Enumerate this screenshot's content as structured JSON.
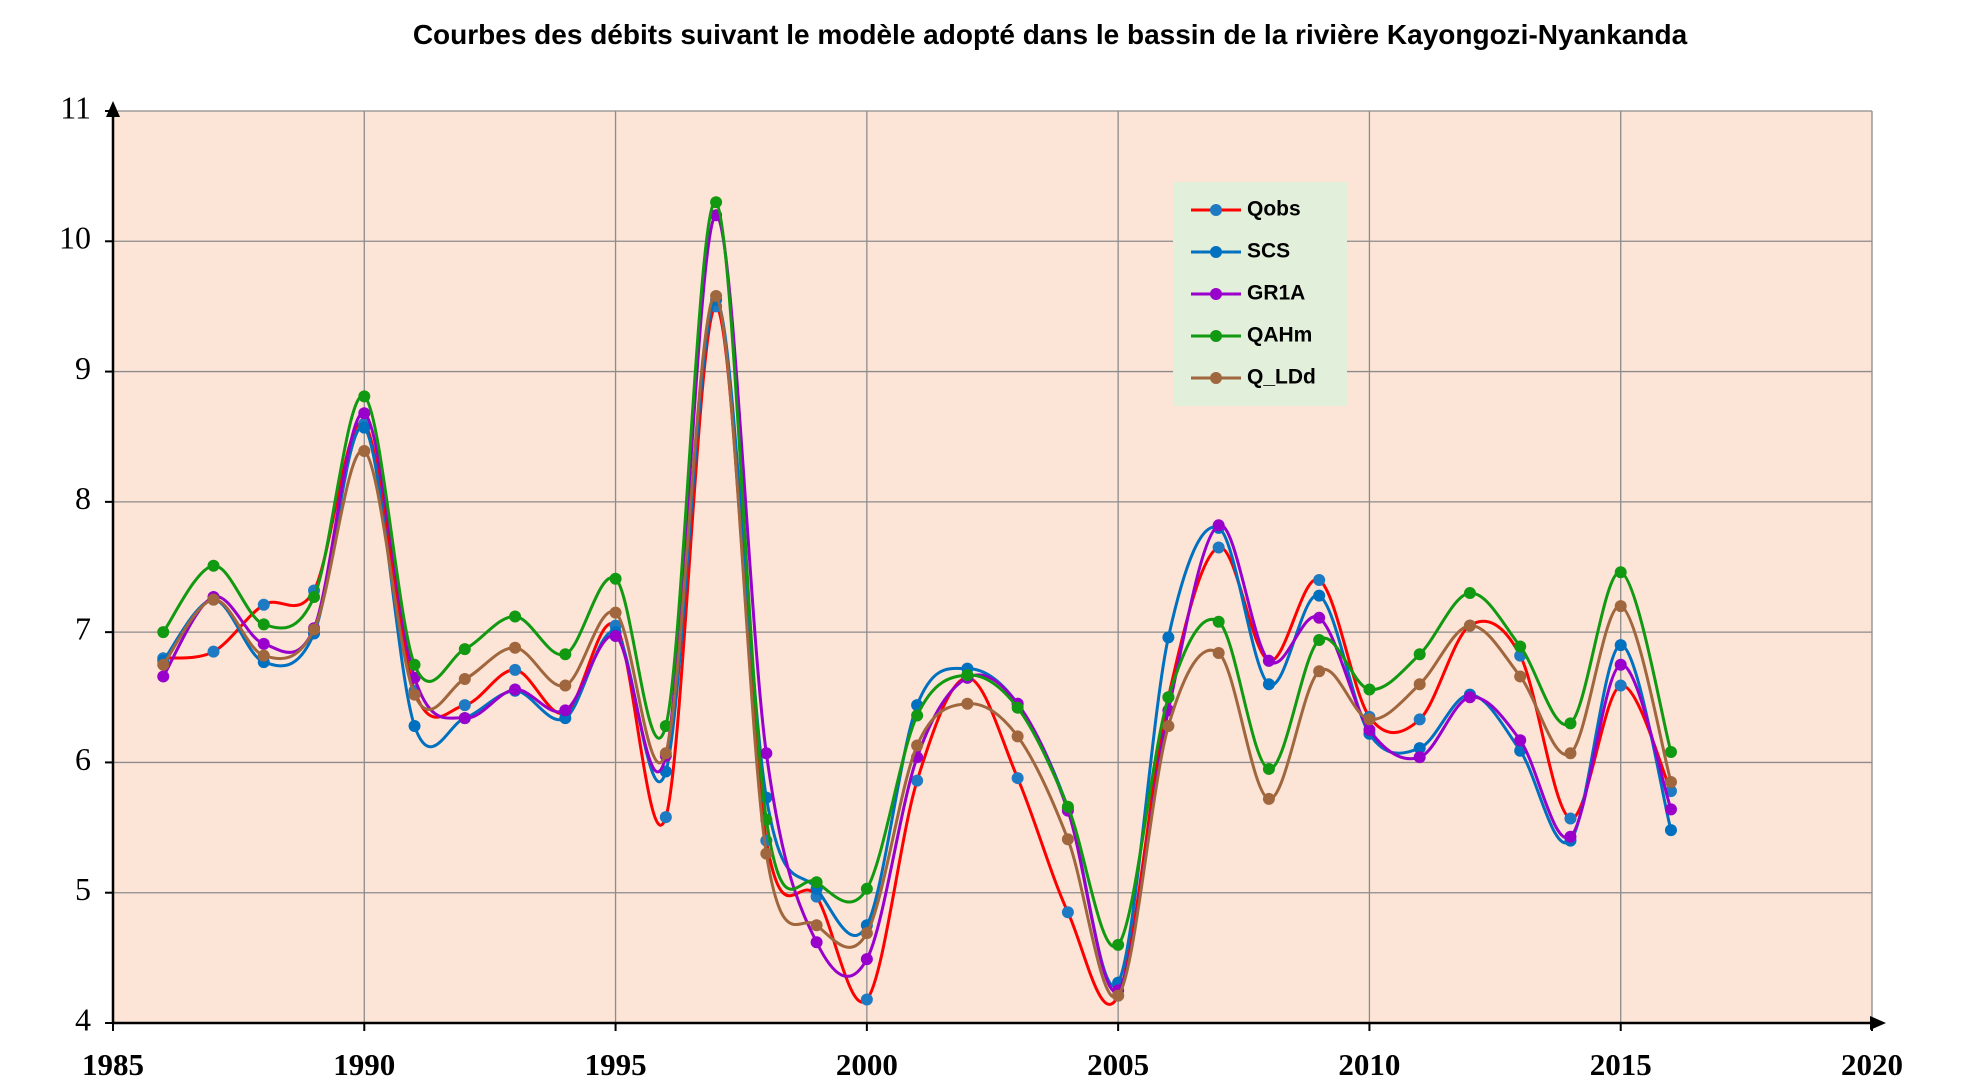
{
  "chart_data": {
    "type": "line",
    "title": "Courbes des débits suivant le modèle adopté dans le bassin de la rivière  Kayongozi-Nyankanda",
    "x": [
      1986,
      1987,
      1988,
      1989,
      1990,
      1991,
      1992,
      1993,
      1994,
      1995,
      1996,
      1997,
      1998,
      1999,
      2000,
      2001,
      2002,
      2003,
      2004,
      2005,
      2006,
      2007,
      2008,
      2009,
      2010,
      2011,
      2012,
      2013,
      2014,
      2015,
      2016
    ],
    "xlim": [
      1985,
      2020
    ],
    "xticks": [
      1985,
      1990,
      1995,
      2000,
      2005,
      2010,
      2015,
      2020
    ],
    "ylim": [
      4,
      11
    ],
    "yticks": [
      4,
      5,
      6,
      7,
      8,
      9,
      10,
      11
    ],
    "grid": true,
    "smooth": true,
    "plot_background": "#fce4d6",
    "legend_position": "upper right",
    "series": [
      {
        "name": "Qobs",
        "color": "#ff0000",
        "marker_color": "#1f7ac4",
        "values": [
          6.8,
          6.85,
          7.21,
          7.32,
          8.6,
          6.55,
          6.44,
          6.71,
          6.38,
          7.05,
          5.58,
          9.5,
          5.4,
          4.97,
          4.18,
          5.86,
          6.65,
          5.88,
          4.85,
          4.21,
          6.5,
          7.65,
          6.78,
          7.4,
          6.35,
          6.33,
          7.05,
          6.82,
          5.57,
          6.59,
          5.78
        ]
      },
      {
        "name": "SCS",
        "color": "#0070c0",
        "marker_color": "#0070c0",
        "values": [
          6.78,
          7.25,
          6.77,
          6.99,
          8.57,
          6.28,
          6.34,
          6.55,
          6.34,
          7.0,
          5.93,
          9.55,
          5.73,
          5.03,
          4.75,
          6.44,
          6.72,
          6.45,
          5.65,
          4.31,
          6.96,
          7.8,
          6.6,
          7.28,
          6.22,
          6.11,
          6.52,
          6.09,
          5.4,
          6.9,
          5.48
        ]
      },
      {
        "name": "GR1A",
        "color": "#9900cc",
        "marker_color": "#9900cc",
        "values": [
          6.66,
          7.27,
          6.91,
          7.03,
          8.68,
          6.65,
          6.34,
          6.56,
          6.4,
          6.97,
          6.05,
          10.2,
          6.07,
          4.62,
          4.49,
          6.04,
          6.65,
          6.45,
          5.63,
          4.25,
          6.4,
          7.82,
          6.78,
          7.11,
          6.25,
          6.04,
          6.5,
          6.17,
          5.43,
          6.75,
          5.64
        ]
      },
      {
        "name": "QAHm",
        "color": "#119911",
        "marker_color": "#119911",
        "values": [
          7.0,
          7.51,
          7.06,
          7.27,
          8.81,
          6.75,
          6.87,
          7.12,
          6.83,
          7.41,
          6.28,
          10.3,
          5.56,
          5.08,
          5.03,
          6.36,
          6.67,
          6.42,
          5.66,
          4.6,
          6.5,
          7.08,
          5.95,
          6.94,
          6.56,
          6.83,
          7.3,
          6.89,
          6.3,
          7.46,
          6.08
        ]
      },
      {
        "name": "Q_LDd",
        "color": "#a0663d",
        "marker_color": "#a0663d",
        "values": [
          6.75,
          7.25,
          6.82,
          7.02,
          8.39,
          6.52,
          6.64,
          6.88,
          6.59,
          7.15,
          6.07,
          9.58,
          5.3,
          4.75,
          4.69,
          6.13,
          6.45,
          6.2,
          5.41,
          4.21,
          6.28,
          6.84,
          5.72,
          6.7,
          6.33,
          6.6,
          7.05,
          6.66,
          6.07,
          7.2,
          5.85
        ]
      }
    ]
  }
}
